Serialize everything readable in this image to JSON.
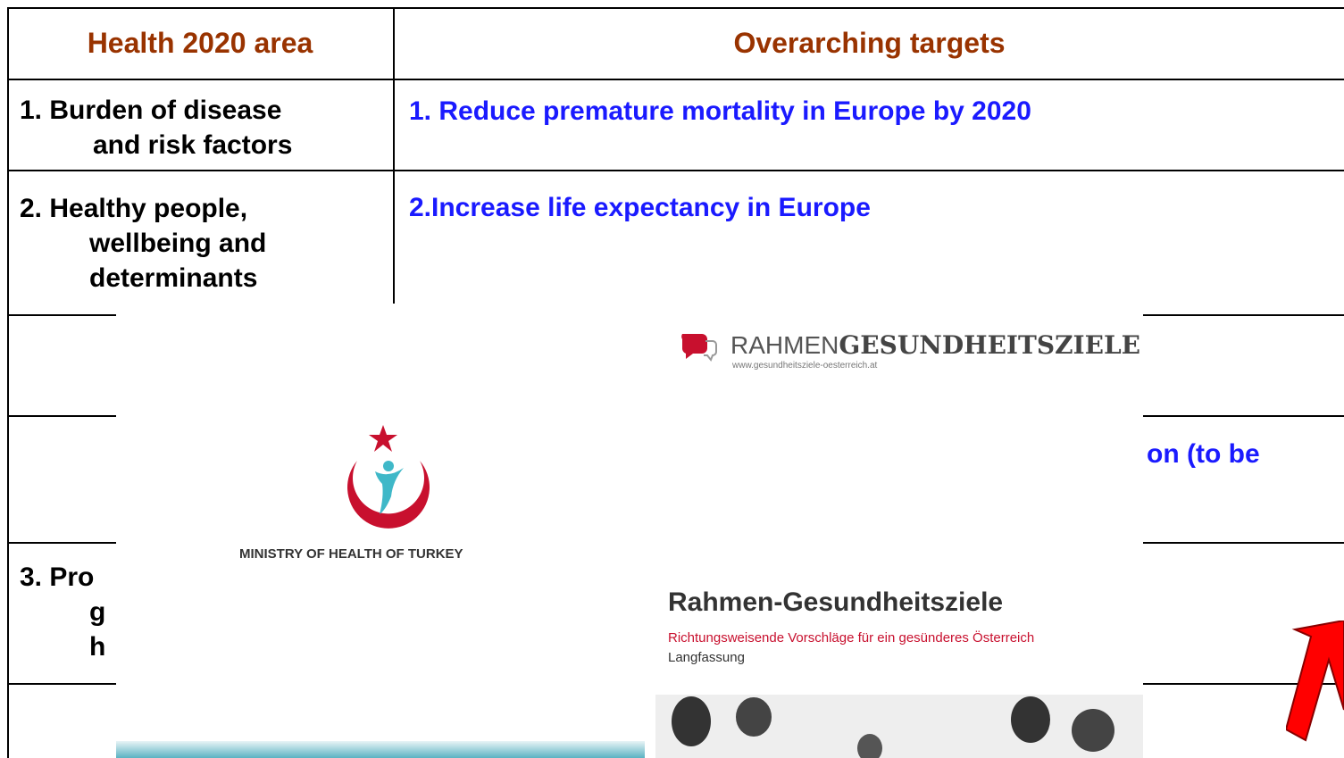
{
  "table": {
    "header": [
      "Health 2020 area",
      "Overarching targets"
    ],
    "rows": [
      {
        "area": [
          "1. Burden of disease",
          "and risk factors"
        ],
        "target": "1. Reduce premature mortality in Europe by 2020"
      },
      {
        "area": [
          "2. Healthy people,",
          "wellbeing and",
          "determinants"
        ],
        "target": "2.Increase life expectancy in Europe"
      },
      {
        "target": "on (to be"
      },
      {
        "area": [
          "3. Pro",
          "g",
          "h"
        ]
      }
    ]
  },
  "turkey": {
    "caption": "MINISTRY OF HEALTH OF TURKEY"
  },
  "austria": {
    "brand_light": "RAHMEN",
    "brand_bold": "GESUNDHEITSZIELE",
    "url": "www.gesundheitsziele-oesterreich.at",
    "title": "Rahmen-Gesundheitsziele",
    "subtitle": "Richtungsweisende Vorschläge für ein gesünderes Österreich",
    "edition": "Langfassung"
  }
}
